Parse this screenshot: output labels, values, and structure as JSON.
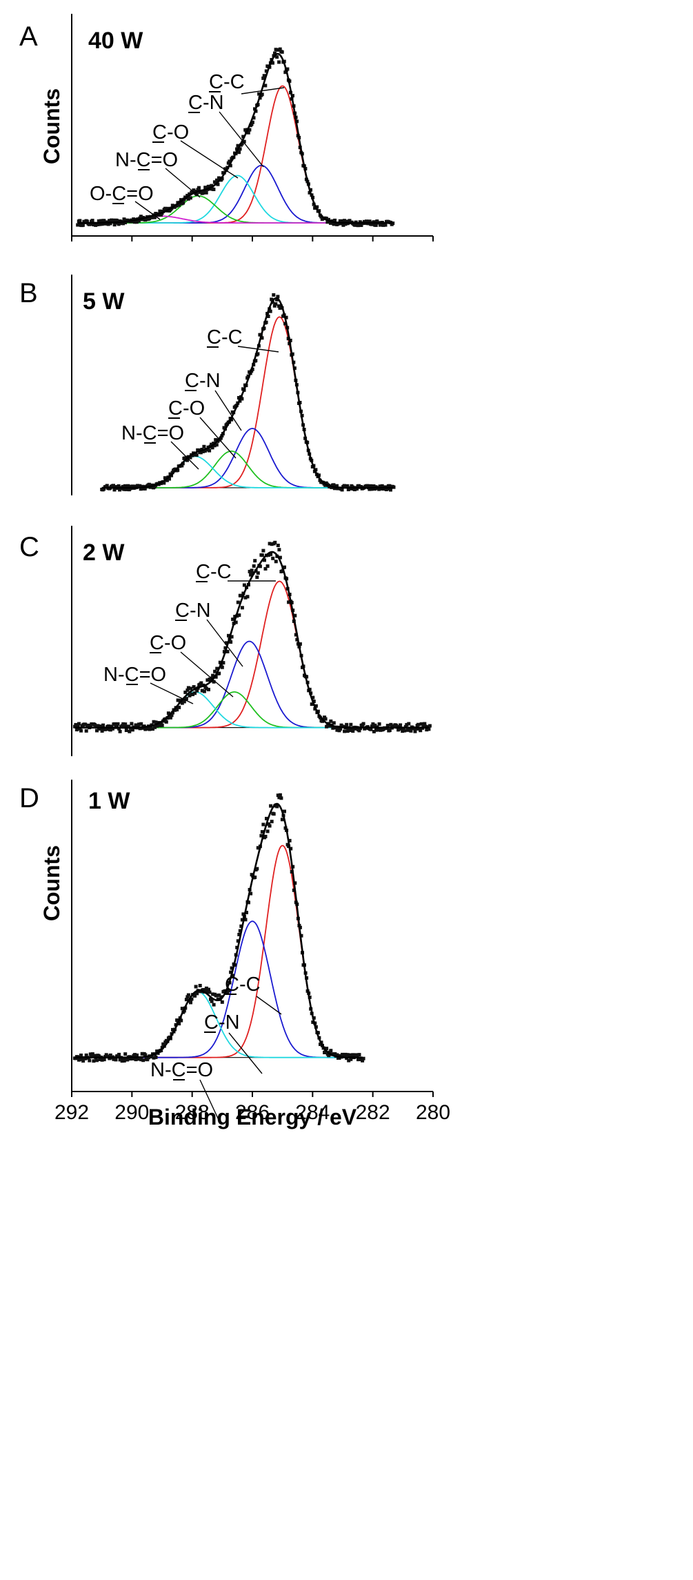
{
  "chart_data": [
    {
      "type": "line",
      "panel": "A",
      "title": "40 W",
      "ylabel": "Counts",
      "xlabel": "",
      "xlim": [
        292,
        280
      ],
      "x_reversed": true,
      "xticks": [],
      "ylim": [
        0,
        1.0
      ],
      "baseline": 0.02,
      "envelope_peak": 1.0,
      "components": [
        {
          "name": "C-C",
          "center": 285.0,
          "height": 0.81,
          "fwhm": 1.25,
          "color": "#e02020"
        },
        {
          "name": "C-N",
          "center": 285.7,
          "height": 0.34,
          "fwhm": 1.3,
          "color": "#1a1ad0"
        },
        {
          "name": "C-O",
          "center": 286.5,
          "height": 0.28,
          "fwhm": 1.3,
          "color": "#20d8e0"
        },
        {
          "name": "N-C=O",
          "center": 287.8,
          "height": 0.16,
          "fwhm": 1.4,
          "color": "#20c020"
        },
        {
          "name": "O-C=O",
          "center": 289.0,
          "height": 0.04,
          "fwhm": 1.6,
          "color": "#d020d0"
        }
      ],
      "annotations": [
        {
          "pre": "",
          "ul": "C",
          "post": "-C"
        },
        {
          "pre": "",
          "ul": "C",
          "post": "-N"
        },
        {
          "pre": "",
          "ul": "C",
          "post": "-O"
        },
        {
          "pre": "N-",
          "ul": "C",
          "post": "=O"
        },
        {
          "pre": "O-",
          "ul": "C",
          "post": "=O"
        }
      ]
    },
    {
      "type": "line",
      "panel": "B",
      "title": "5 W",
      "ylabel": "",
      "xlabel": "",
      "xlim": [
        292,
        280
      ],
      "x_reversed": true,
      "xticks": [],
      "ylim": [
        0,
        1.0
      ],
      "baseline": 0.02,
      "envelope_peak": 1.0,
      "components": [
        {
          "name": "C-C",
          "center": 285.1,
          "height": 0.98,
          "fwhm": 1.3,
          "color": "#e02020"
        },
        {
          "name": "C-N",
          "center": 286.0,
          "height": 0.34,
          "fwhm": 1.3,
          "color": "#1a1ad0"
        },
        {
          "name": "C-O",
          "center": 286.7,
          "height": 0.21,
          "fwhm": 1.3,
          "color": "#20c020"
        },
        {
          "name": "N-C=O",
          "center": 287.9,
          "height": 0.18,
          "fwhm": 1.4,
          "color": "#20d8e0"
        }
      ],
      "annotations": [
        {
          "pre": "",
          "ul": "C",
          "post": "-C"
        },
        {
          "pre": "",
          "ul": "C",
          "post": "-N"
        },
        {
          "pre": "",
          "ul": "C",
          "post": "-O"
        },
        {
          "pre": "N-",
          "ul": "C",
          "post": "=O"
        }
      ]
    },
    {
      "type": "line",
      "panel": "C",
      "title": "2 W",
      "ylabel": "",
      "xlabel": "",
      "xlim": [
        292,
        280
      ],
      "x_reversed": true,
      "xticks": [],
      "ylim": [
        0,
        1.0
      ],
      "baseline": 0.02,
      "envelope_peak": 1.0,
      "components": [
        {
          "name": "C-C",
          "center": 285.1,
          "height": 0.78,
          "fwhm": 1.4,
          "color": "#e02020"
        },
        {
          "name": "C-N",
          "center": 286.1,
          "height": 0.46,
          "fwhm": 1.4,
          "color": "#1a1ad0"
        },
        {
          "name": "C-O",
          "center": 286.6,
          "height": 0.19,
          "fwhm": 1.3,
          "color": "#20c020"
        },
        {
          "name": "N-C=O",
          "center": 287.9,
          "height": 0.19,
          "fwhm": 1.4,
          "color": "#20d8e0"
        }
      ],
      "annotations": [
        {
          "pre": "",
          "ul": "C",
          "post": "-C"
        },
        {
          "pre": "",
          "ul": "C",
          "post": "-N"
        },
        {
          "pre": "",
          "ul": "C",
          "post": "-O"
        },
        {
          "pre": "N-",
          "ul": "C",
          "post": "=O"
        }
      ]
    },
    {
      "type": "line",
      "panel": "D",
      "title": "1 W",
      "ylabel": "Counts",
      "xlabel": "Binding Energy / eV",
      "xlim": [
        292,
        280
      ],
      "x_reversed": true,
      "xticks": [
        292,
        290,
        288,
        286,
        284,
        282,
        280
      ],
      "ylim": [
        0,
        1.0
      ],
      "baseline": 0.02,
      "envelope_peak": 1.0,
      "components": [
        {
          "name": "C-C",
          "center": 285.0,
          "height": 0.84,
          "fwhm": 1.3,
          "color": "#e02020"
        },
        {
          "name": "C-N",
          "center": 286.0,
          "height": 0.54,
          "fwhm": 1.4,
          "color": "#1a1ad0"
        },
        {
          "name": "N-C=O",
          "center": 287.8,
          "height": 0.26,
          "fwhm": 1.4,
          "color": "#20d8e0"
        }
      ],
      "annotations": [
        {
          "pre": "",
          "ul": "C",
          "post": "-C"
        },
        {
          "pre": "",
          "ul": "C",
          "post": "-N"
        },
        {
          "pre": "N-",
          "ul": "C",
          "post": "=O"
        }
      ]
    }
  ]
}
